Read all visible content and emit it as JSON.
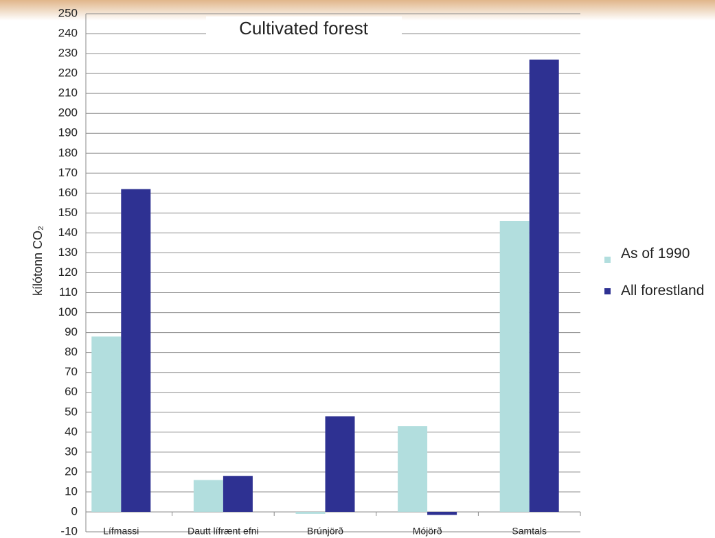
{
  "chart_data": {
    "type": "bar",
    "title": "Cultivated forest",
    "y_label": "kílótonn CO₂",
    "categories": [
      "Lífmassi",
      "Dautt lífrænt efni",
      "Brúnjörð",
      "Mójörð",
      "Samtals"
    ],
    "series": [
      {
        "name": "As of 1990",
        "color": "#b2dede",
        "values": [
          88,
          16,
          -1,
          43,
          146
        ]
      },
      {
        "name": "All forestland",
        "color": "#2e3192",
        "values": [
          162,
          18,
          48,
          -1.5,
          227
        ]
      }
    ],
    "ylim": [
      -10,
      250
    ],
    "yticks": [
      -10,
      0,
      10,
      20,
      30,
      40,
      50,
      60,
      70,
      80,
      90,
      100,
      110,
      120,
      130,
      140,
      150,
      160,
      170,
      180,
      190,
      200,
      210,
      220,
      230,
      240,
      250
    ],
    "grid": true,
    "legend": "right"
  }
}
